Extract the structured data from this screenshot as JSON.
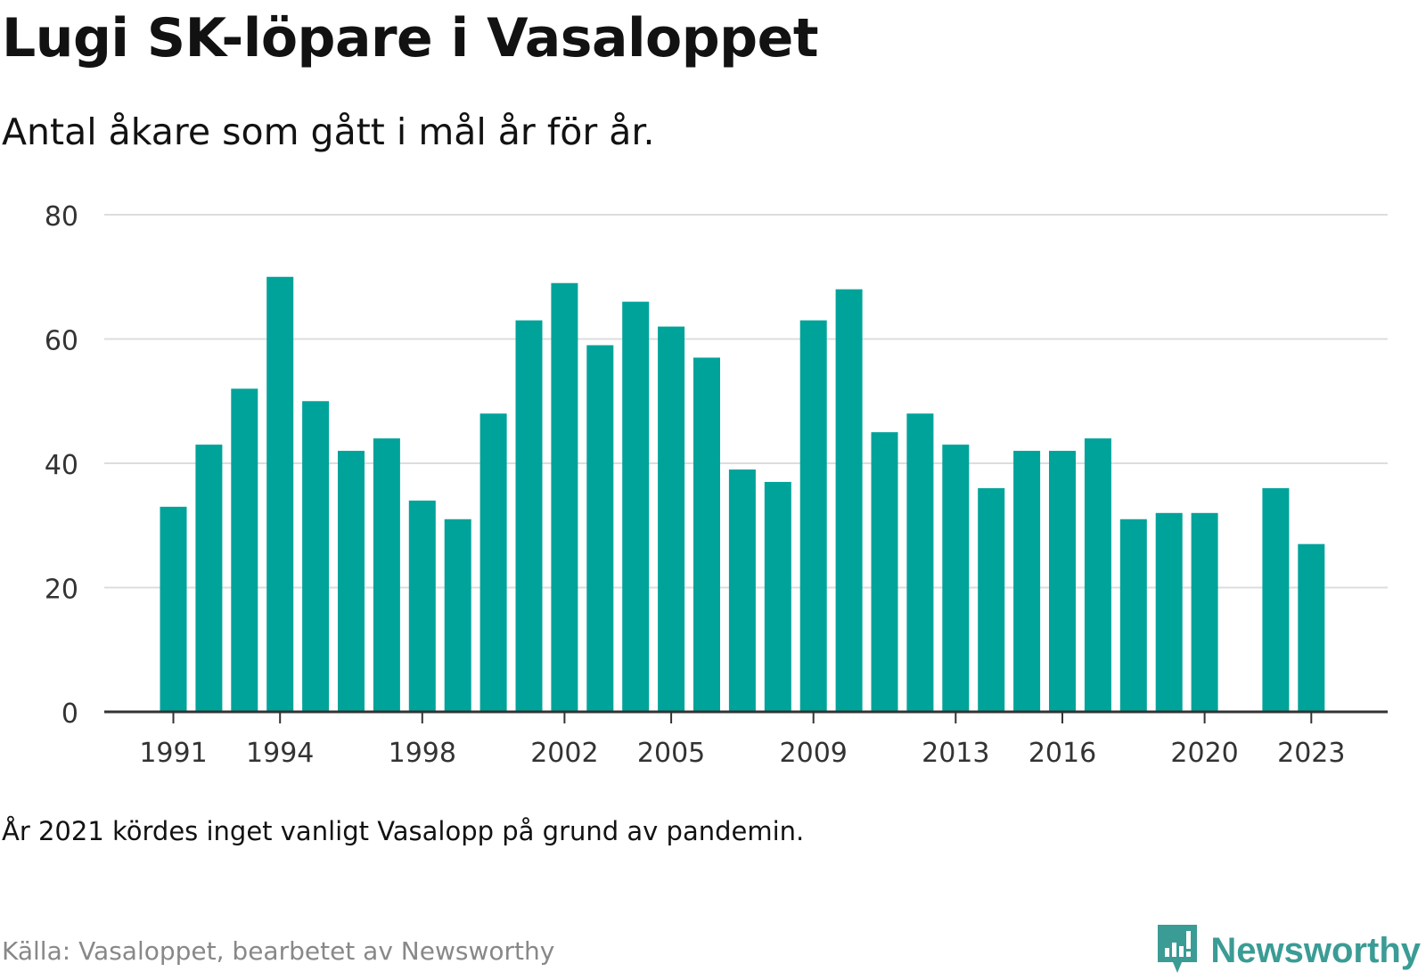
{
  "title": "Lugi SK-löpare i Vasaloppet",
  "subtitle": "Antal åkare som gått i mål år för år.",
  "note": "År 2021 kördes inget vanligt Vasalopp på grund av pandemin.",
  "source": "Källa: Vasaloppet, bearbetet av Newsworthy",
  "brand": {
    "name": "Newsworthy",
    "icon": "newsworthy-logo-icon",
    "color": "#3a9c95"
  },
  "colors": {
    "bar": "#00a39a",
    "grid": "#dddddd",
    "axis": "#333333",
    "tick_text": "#333333"
  },
  "chart_data": {
    "type": "bar",
    "categories": [
      1991,
      1992,
      1993,
      1994,
      1995,
      1996,
      1997,
      1998,
      1999,
      2000,
      2001,
      2002,
      2003,
      2004,
      2005,
      2006,
      2007,
      2008,
      2009,
      2010,
      2011,
      2012,
      2013,
      2014,
      2015,
      2016,
      2017,
      2018,
      2019,
      2020,
      2021,
      2022,
      2023
    ],
    "values": [
      33,
      43,
      52,
      70,
      50,
      42,
      44,
      34,
      31,
      48,
      63,
      69,
      59,
      66,
      62,
      57,
      39,
      37,
      63,
      68,
      45,
      48,
      43,
      36,
      42,
      42,
      44,
      31,
      32,
      32,
      null,
      36,
      27
    ],
    "x_tick_labels": [
      "1991",
      "1994",
      "1998",
      "2002",
      "2005",
      "2009",
      "2013",
      "2016",
      "2020",
      "2023"
    ],
    "y_ticks": [
      "0",
      "20",
      "40",
      "60",
      "80"
    ],
    "ylim": [
      0,
      80
    ],
    "grid": true,
    "legend": "none",
    "title": "Lugi SK-löpare i Vasaloppet",
    "xlabel": "",
    "ylabel": ""
  }
}
